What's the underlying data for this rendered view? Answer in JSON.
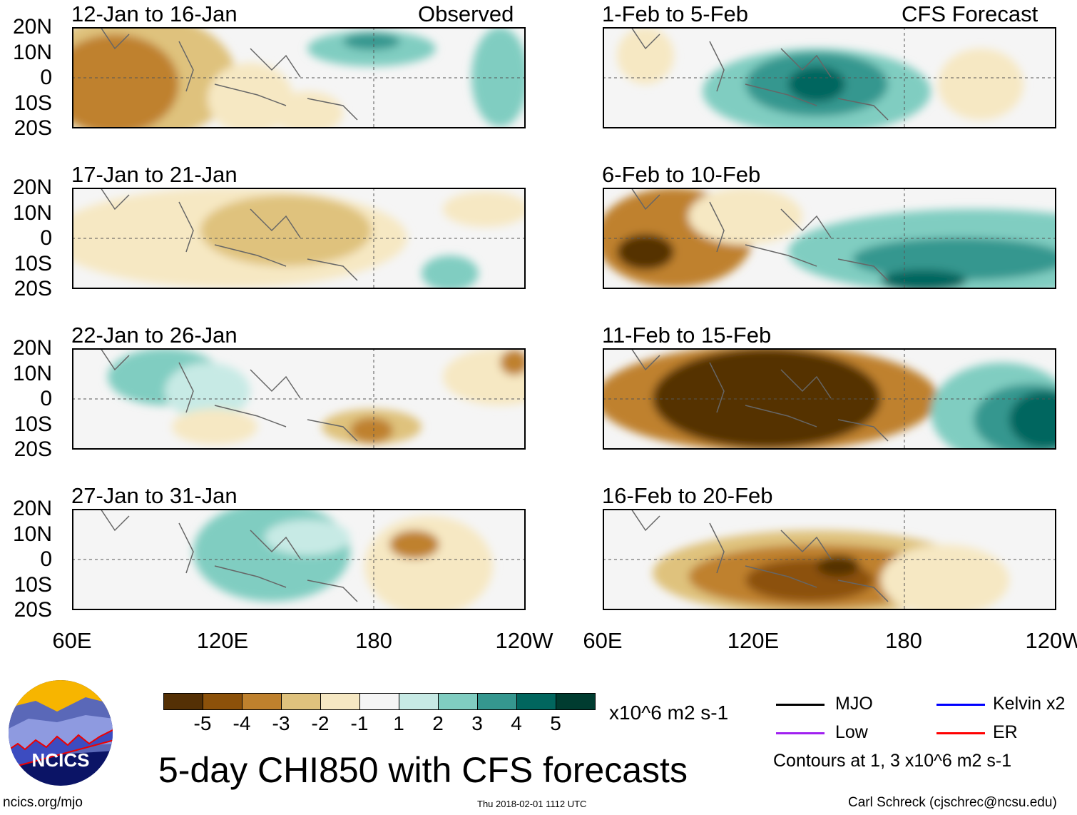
{
  "title": "5-day CHI850 with CFS forecasts",
  "units": "x10^6 m2 s-1",
  "labels": {
    "observed": "Observed",
    "forecast": "CFS Forecast"
  },
  "lat_labels": [
    "20N",
    "10N",
    "0",
    "10S",
    "20S"
  ],
  "lon_labels": [
    "60E",
    "120E",
    "180",
    "120W"
  ],
  "panels": [
    {
      "title": "12-Jan to 16-Jan",
      "group": "observed"
    },
    {
      "title": "17-Jan to 21-Jan",
      "group": "observed"
    },
    {
      "title": "22-Jan to 26-Jan",
      "group": "observed"
    },
    {
      "title": "27-Jan to 31-Jan",
      "group": "observed"
    },
    {
      "title": "1-Feb to 5-Feb",
      "group": "forecast"
    },
    {
      "title": "6-Feb to 10-Feb",
      "group": "forecast"
    },
    {
      "title": "11-Feb to 15-Feb",
      "group": "forecast"
    },
    {
      "title": "16-Feb to 20-Feb",
      "group": "forecast"
    }
  ],
  "colorbar": {
    "labels": [
      "-5",
      "-4",
      "-3",
      "-2",
      "-1",
      "1",
      "2",
      "3",
      "4",
      "5"
    ],
    "colors": [
      "#543005",
      "#8c510a",
      "#bf812d",
      "#dfc27d",
      "#f6e8c3",
      "#f5f5f5",
      "#c7eae5",
      "#80cdc1",
      "#35978f",
      "#01665e",
      "#003c30"
    ]
  },
  "legend": {
    "items": [
      {
        "label": "MJO",
        "color": "#000000"
      },
      {
        "label": "Kelvin x2",
        "color": "#0000ff"
      },
      {
        "label": "Low",
        "color": "#a020f0"
      },
      {
        "label": "ER",
        "color": "#ff0000"
      }
    ],
    "note": "Contours at 1, 3 x10^6 m2 s-1"
  },
  "logo": {
    "text": "NCICS"
  },
  "footer": {
    "url": "ncics.org/mjo",
    "timestamp": "Thu 2018-02-01 1112 UTC",
    "credit": "Carl Schreck (cjschrec@ncsu.edu)"
  }
}
